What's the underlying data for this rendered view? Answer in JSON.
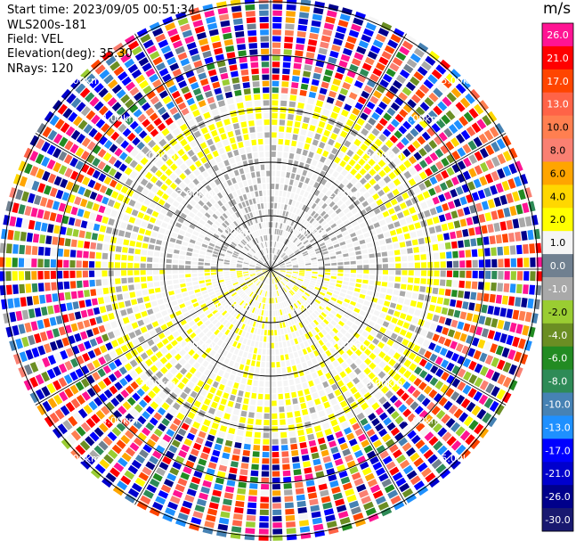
{
  "header": {
    "start_time": "Start time: 2023/09/05 00:51:34",
    "instrument": "WLS200s-181",
    "field": "Field: VEL",
    "elevation": "Elevation(deg): 35.30",
    "nrays": "NRays: 120"
  },
  "colorbar": {
    "unit": "m/s",
    "labels": [
      "26.0",
      "21.0",
      "17.0",
      "13.0",
      "10.0",
      "8.0",
      "6.0",
      "4.0",
      "2.0",
      "1.0",
      "0.0",
      "-1.0",
      "-2.0",
      "-4.0",
      "-6.0",
      "-8.0",
      "-10.0",
      "-13.0",
      "-17.0",
      "-21.0",
      "-26.0",
      "-30.0"
    ],
    "colors": [
      "#ff1493",
      "#ff0000",
      "#ff4500",
      "#ff6347",
      "#ff7f50",
      "#fa8072",
      "#ffa500",
      "#ffd700",
      "#ffff00",
      "#f5f5f5",
      "#708090",
      "#a9a9a9",
      "#9acd32",
      "#6b8e23",
      "#228b22",
      "#2e8b57",
      "#4682b4",
      "#1e90ff",
      "#0000ff",
      "#0000cd",
      "#00008b",
      "#191970"
    ]
  },
  "chart_data": {
    "type": "heatmap",
    "subtype": "polar PPI scan",
    "nrays": 120,
    "range_rings_km": [
      1.0,
      2.0,
      3.0,
      4.0,
      5.0
    ],
    "ring_labels": [
      "1.00km",
      "2.00km",
      "3.00km",
      "4.00km",
      "5.00km"
    ],
    "max_range_km": 5.3,
    "velocity_unit": "m/s",
    "velocity_range": [
      -30,
      26
    ],
    "description_zones": [
      {
        "range_km": [
          0.0,
          2.3
        ],
        "dominant_velocity_north_half": -1.5,
        "dominant_velocity_south_half": 2.5
      },
      {
        "range_km": [
          2.3,
          3.2
        ],
        "dominant_velocity": 2.5
      },
      {
        "range_km": [
          3.2,
          5.3
        ],
        "dominant_velocity": "noisy (all values)"
      }
    ]
  }
}
